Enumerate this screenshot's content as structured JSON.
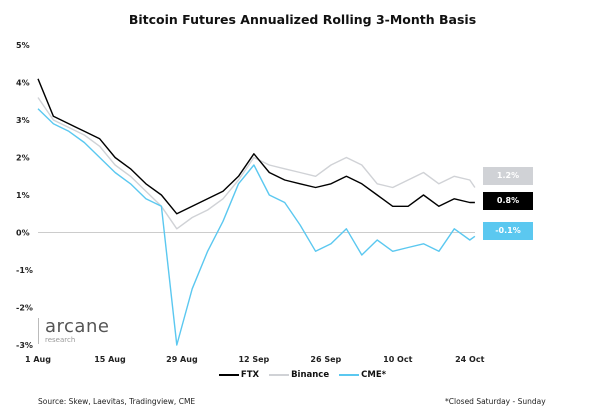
{
  "chart_data": {
    "type": "line",
    "title": "Bitcoin Futures Annualized Rolling 3-Month Basis",
    "x": [
      "1 Aug",
      "4 Aug",
      "7 Aug",
      "10 Aug",
      "13 Aug",
      "16 Aug",
      "19 Aug",
      "22 Aug",
      "25 Aug",
      "28 Aug",
      "31 Aug",
      "3 Sep",
      "6 Sep",
      "9 Sep",
      "12 Sep",
      "15 Sep",
      "18 Sep",
      "21 Sep",
      "24 Sep",
      "27 Sep",
      "30 Sep",
      "3 Oct",
      "6 Oct",
      "9 Oct",
      "12 Oct",
      "15 Oct",
      "18 Oct",
      "21 Oct",
      "24 Oct",
      "25 Oct"
    ],
    "x_tick_labels": [
      "1 Aug",
      "15 Aug",
      "29 Aug",
      "12 Sep",
      "26 Sep",
      "10 Oct",
      "24 Oct"
    ],
    "y_tick_labels": [
      "5%",
      "4%",
      "3%",
      "2%",
      "1%",
      "0%",
      "-1%",
      "-2%",
      "-3%"
    ],
    "ylim": [
      -3,
      5
    ],
    "yunit": "%",
    "zero_line": true,
    "series": [
      {
        "name": "FTX",
        "color": "#000000",
        "values": [
          4.1,
          3.1,
          2.9,
          2.7,
          2.5,
          2.0,
          1.7,
          1.3,
          1.0,
          0.5,
          0.7,
          0.9,
          1.1,
          1.5,
          2.1,
          1.6,
          1.4,
          1.3,
          1.2,
          1.3,
          1.5,
          1.3,
          1.0,
          0.7,
          0.7,
          1.0,
          0.7,
          0.9,
          0.8,
          0.8
        ],
        "end_label": "0.8%"
      },
      {
        "name": "Binance",
        "color": "#d0d2d6",
        "values": [
          3.6,
          3.0,
          2.8,
          2.6,
          2.3,
          1.8,
          1.5,
          1.1,
          0.7,
          0.1,
          0.4,
          0.6,
          0.9,
          1.4,
          2.0,
          1.8,
          1.7,
          1.6,
          1.5,
          1.8,
          2.0,
          1.8,
          1.3,
          1.2,
          1.4,
          1.6,
          1.3,
          1.5,
          1.4,
          1.2
        ],
        "end_label": "1.2%"
      },
      {
        "name": "CME*",
        "color": "#5bc8f0",
        "values": [
          3.3,
          2.9,
          2.7,
          2.4,
          2.0,
          1.6,
          1.3,
          0.9,
          0.7,
          -3.0,
          -1.5,
          -0.5,
          0.3,
          1.3,
          1.8,
          1.0,
          0.8,
          0.2,
          -0.5,
          -0.3,
          0.1,
          -0.6,
          -0.2,
          -0.5,
          -0.4,
          -0.3,
          -0.5,
          0.1,
          -0.2,
          -0.1
        ],
        "end_label": "-0.1%"
      }
    ],
    "legend": "bottom"
  },
  "logo": {
    "name": "arcane",
    "sub": "research"
  },
  "footer": {
    "source": "Source: Skew, Laevitas, Tradingview, CME",
    "note": "*Closed Saturday - Sunday"
  }
}
